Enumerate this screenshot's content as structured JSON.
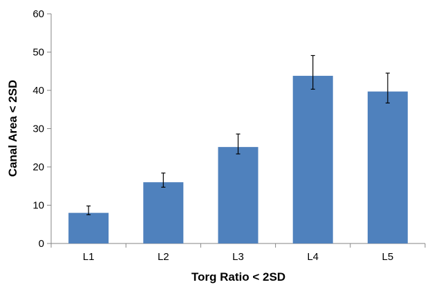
{
  "chart_data": {
    "type": "bar",
    "categories": [
      "L1",
      "L2",
      "L3",
      "L4",
      "L5"
    ],
    "values": [
      8,
      16,
      25.2,
      43.8,
      39.7
    ],
    "error_low": [
      7.5,
      14.7,
      23.4,
      40.3,
      36.7
    ],
    "error_high": [
      9.8,
      18.4,
      28.6,
      49.1,
      44.5
    ],
    "xlabel": "Torg Ratio < 2SD",
    "ylabel": "Canal Area < 2SD",
    "ylim": [
      0,
      60
    ],
    "yticks": [
      "0",
      "10",
      "20",
      "30",
      "40",
      "50",
      "60"
    ],
    "grid": false,
    "legend": "none",
    "colors": {
      "bar": "#4f81bd",
      "axis": "#868686",
      "error_bar": "#000000"
    }
  }
}
